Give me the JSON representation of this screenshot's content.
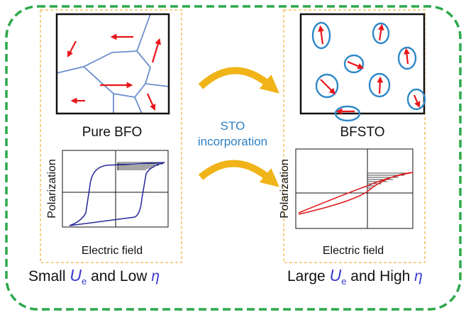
{
  "left": {
    "label": "Pure BFO",
    "plot": {
      "y_label": "Polarization",
      "x_label": "Electric field"
    },
    "caption": [
      "Small",
      "U",
      "e",
      "and Low",
      "η"
    ]
  },
  "center": {
    "lines": [
      "STO",
      "incorporation"
    ]
  },
  "right": {
    "label": "BFSTO",
    "plot": {
      "y_label": "Polarization",
      "x_label": "Electric field"
    },
    "caption": [
      "Large",
      "U",
      "e",
      "and High",
      "η"
    ]
  }
}
